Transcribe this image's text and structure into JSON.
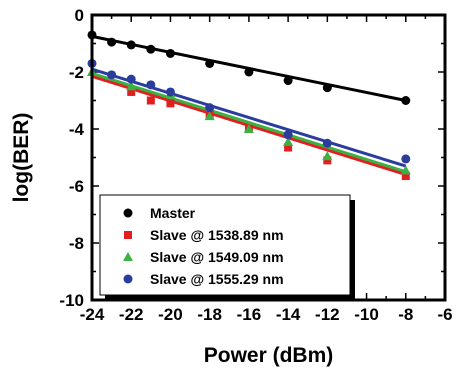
{
  "chart_data": {
    "type": "scatter",
    "xlabel": "Power (dBm)",
    "ylabel": "log(BER)",
    "xlim": [
      -24,
      -6
    ],
    "ylim": [
      -10,
      0
    ],
    "x_ticks": [
      -24,
      -22,
      -20,
      -18,
      -16,
      -14,
      -12,
      -10,
      -8,
      -6
    ],
    "y_ticks": [
      0,
      -2,
      -4,
      -6,
      -8,
      -10
    ],
    "legend_position": "bottom-left",
    "grid": false,
    "series": [
      {
        "name": "Master",
        "color": "#000000",
        "marker": "circle",
        "x": [
          -24,
          -23,
          -22,
          -21,
          -20,
          -18,
          -16,
          -14,
          -12,
          -8
        ],
        "y": [
          -0.7,
          -0.95,
          -1.05,
          -1.2,
          -1.35,
          -1.7,
          -2.0,
          -2.3,
          -2.55,
          -3.0
        ],
        "fit": [
          [
            -24,
            -0.75
          ],
          [
            -8,
            -3.0
          ]
        ]
      },
      {
        "name": "Slave @ 1538.89 nm",
        "color": "#e02020",
        "marker": "square",
        "x": [
          -22,
          -21,
          -20,
          -18,
          -16,
          -14,
          -12,
          -8
        ],
        "y": [
          -2.7,
          -3.0,
          -3.1,
          -3.5,
          -4.0,
          -4.65,
          -5.1,
          -5.65
        ],
        "fit": [
          [
            -24,
            -2.15
          ],
          [
            -8,
            -5.6
          ]
        ]
      },
      {
        "name": "Slave @ 1549.09 nm",
        "color": "#3cb043",
        "marker": "triangle",
        "x": [
          -24,
          -22,
          -20,
          -18,
          -16,
          -14,
          -12,
          -8
        ],
        "y": [
          -2.0,
          -2.5,
          -2.75,
          -3.55,
          -4.0,
          -4.45,
          -4.95,
          -5.45
        ],
        "fit": [
          [
            -24,
            -2.05
          ],
          [
            -8,
            -5.5
          ]
        ]
      },
      {
        "name": "Slave @ 1555.29 nm",
        "color": "#2a3c9c",
        "marker": "circle",
        "x": [
          -24,
          -23,
          -22,
          -21,
          -20,
          -18,
          -14,
          -12,
          -8
        ],
        "y": [
          -1.7,
          -2.1,
          -2.25,
          -2.45,
          -2.7,
          -3.25,
          -4.2,
          -4.5,
          -5.05
        ],
        "fit": [
          [
            -24,
            -1.9
          ],
          [
            -8,
            -5.3
          ]
        ]
      }
    ]
  }
}
